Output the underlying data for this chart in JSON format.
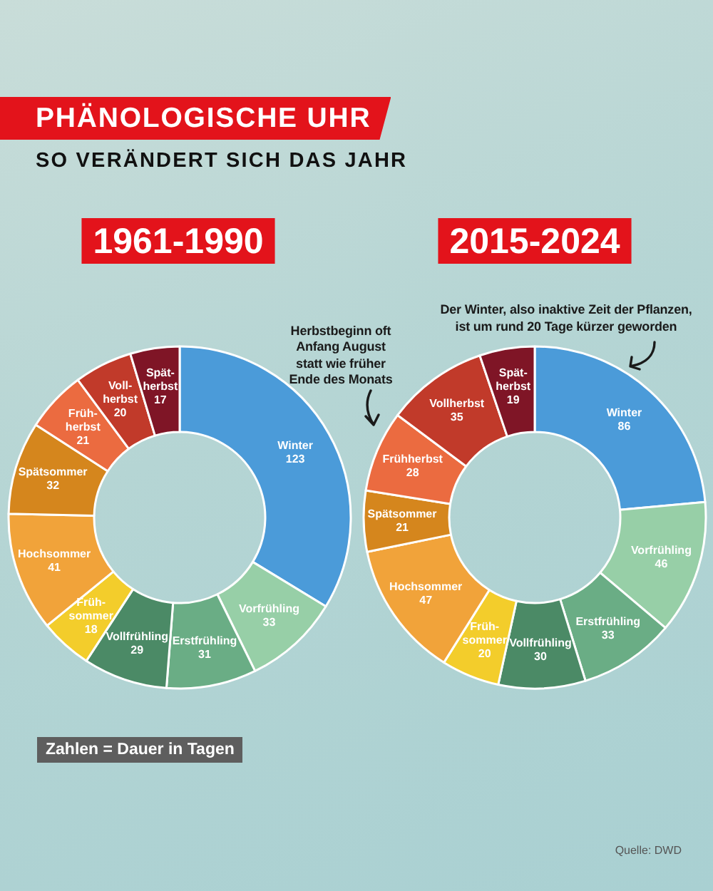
{
  "chart_data": [
    {
      "type": "other",
      "title": "PHÄNOLOGISCHE UHR",
      "subtitle": "SO VERÄNDERT SICH DAS JAHR",
      "annotations": [
        "Zahlen = Dauer in Tagen",
        "Quelle: DWD"
      ]
    },
    {
      "type": "donut",
      "title": "1961-1990",
      "categories": [
        "Winter",
        "Vorfrühling",
        "Erstfrühling",
        "Vollfrühling",
        "Früh-\nsommer",
        "Hochsommer",
        "Spätsommer",
        "Früh-\nherbst",
        "Voll-\nherbst",
        "Spät-\nherbst"
      ],
      "values": [
        123,
        33,
        31,
        29,
        18,
        41,
        32,
        21,
        20,
        17
      ],
      "colors": [
        "#4b9bd9",
        "#97cfa7",
        "#6aad85",
        "#4b8a66",
        "#f3cd2b",
        "#f1a33a",
        "#d5861d",
        "#eb6b40",
        "#c13a2a",
        "#7f1526"
      ],
      "data_labels": true
    },
    {
      "type": "donut",
      "title": "2015-2024",
      "categories": [
        "Winter",
        "Vorfrühling",
        "Erstfrühling",
        "Vollfrühling",
        "Früh-\nsommer",
        "Hochsommer",
        "Spätsommer",
        "Frühherbst",
        "Vollherbst",
        "Spät-\nherbst"
      ],
      "values": [
        86,
        46,
        33,
        30,
        20,
        47,
        21,
        28,
        35,
        19
      ],
      "colors": [
        "#4b9bd9",
        "#97cfa7",
        "#6aad85",
        "#4b8a66",
        "#f3cd2b",
        "#f1a33a",
        "#d5861d",
        "#eb6b40",
        "#c13a2a",
        "#7f1526"
      ],
      "data_labels": true,
      "annotations": [
        "Herbstbeginn oft\nAnfang August\nstatt wie früher\nEnde des Monats",
        "Der Winter, also inaktive Zeit der Pflanzen,\nist um rund 20 Tage kürzer geworden"
      ]
    }
  ]
}
